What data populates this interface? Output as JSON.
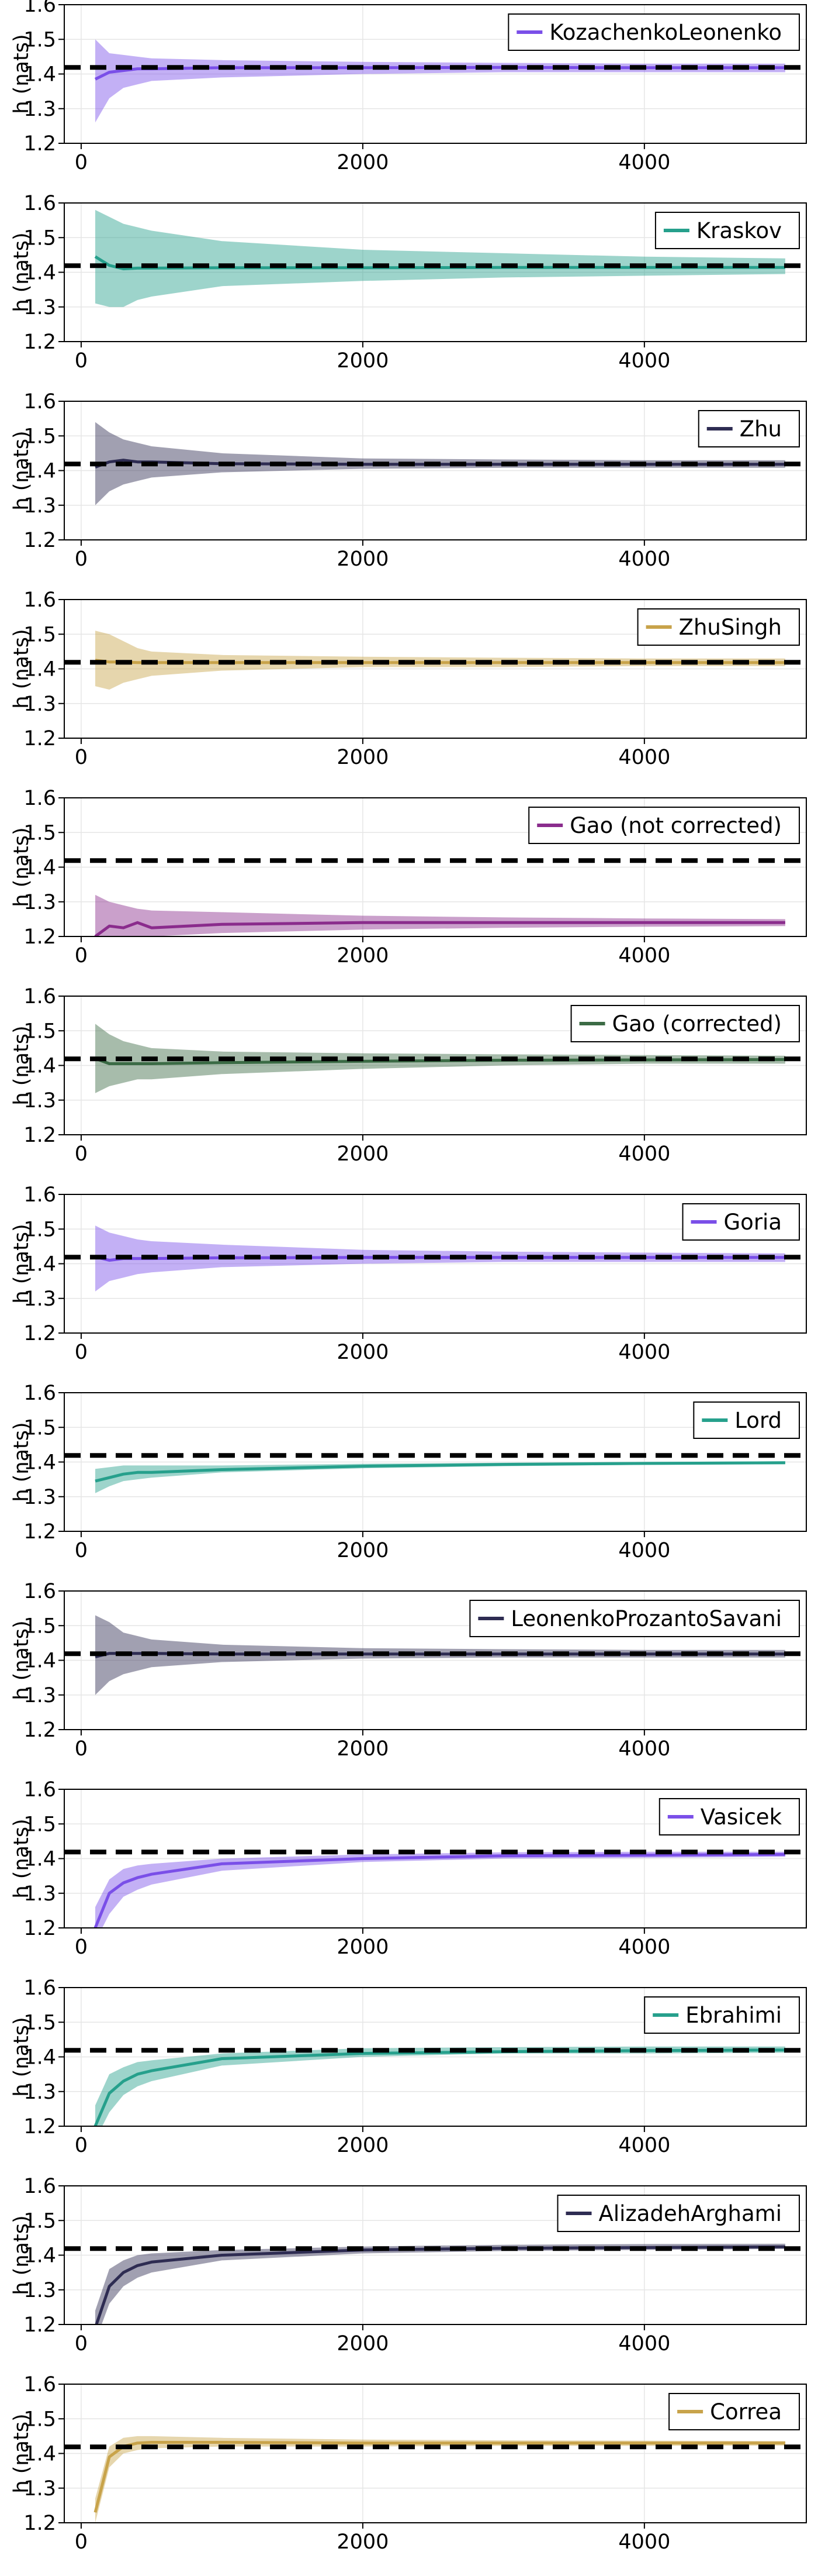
{
  "figure": {
    "xticks": [
      "0",
      "2000",
      "4000"
    ],
    "yticks": [
      "1.2",
      "1.3",
      "1.4",
      "1.5",
      "1.6"
    ],
    "ylabel": "h (nats)",
    "reference_value": 1.4189
  },
  "chart_data": [
    {
      "type": "line",
      "title": "",
      "xlabel": "",
      "ylabel": "h (nats)",
      "xlim": [
        -120,
        5150
      ],
      "ylim": [
        1.2,
        1.6
      ],
      "grid": true,
      "legend_position": "top-right",
      "series": [
        {
          "name": "KozachenkoLeonenko",
          "color": "#7a4fe8",
          "x": [
            100,
            200,
            300,
            400,
            500,
            1000,
            2000,
            3000,
            4000,
            5000
          ],
          "y": [
            1.385,
            1.405,
            1.41,
            1.415,
            1.415,
            1.418,
            1.418,
            1.419,
            1.418,
            1.418
          ],
          "lower": [
            1.26,
            1.33,
            1.36,
            1.37,
            1.38,
            1.39,
            1.4,
            1.405,
            1.405,
            1.405
          ],
          "upper": [
            1.5,
            1.46,
            1.455,
            1.45,
            1.445,
            1.44,
            1.435,
            1.432,
            1.43,
            1.43
          ]
        }
      ]
    },
    {
      "type": "line",
      "title": "",
      "xlabel": "",
      "ylabel": "h (nats)",
      "xlim": [
        -120,
        5150
      ],
      "ylim": [
        1.2,
        1.6
      ],
      "grid": true,
      "legend_position": "top-right",
      "series": [
        {
          "name": "Kraskov",
          "color": "#26a08c",
          "x": [
            100,
            200,
            300,
            400,
            500,
            1000,
            2000,
            3000,
            4000,
            5000
          ],
          "y": [
            1.445,
            1.42,
            1.41,
            1.412,
            1.412,
            1.413,
            1.413,
            1.414,
            1.414,
            1.414
          ],
          "lower": [
            1.31,
            1.3,
            1.3,
            1.32,
            1.33,
            1.36,
            1.375,
            1.385,
            1.39,
            1.395
          ],
          "upper": [
            1.58,
            1.56,
            1.54,
            1.53,
            1.52,
            1.49,
            1.465,
            1.455,
            1.445,
            1.44
          ]
        }
      ]
    },
    {
      "type": "line",
      "title": "",
      "xlabel": "",
      "ylabel": "h (nats)",
      "xlim": [
        -120,
        5150
      ],
      "ylim": [
        1.2,
        1.6
      ],
      "grid": true,
      "legend_position": "top-right",
      "series": [
        {
          "name": "Zhu",
          "color": "#2e2c52",
          "x": [
            100,
            200,
            300,
            400,
            500,
            1000,
            2000,
            3000,
            4000,
            5000
          ],
          "y": [
            1.41,
            1.425,
            1.43,
            1.425,
            1.425,
            1.42,
            1.418,
            1.418,
            1.418,
            1.418
          ],
          "lower": [
            1.3,
            1.34,
            1.36,
            1.37,
            1.38,
            1.395,
            1.405,
            1.408,
            1.408,
            1.408
          ],
          "upper": [
            1.54,
            1.51,
            1.49,
            1.48,
            1.47,
            1.45,
            1.435,
            1.432,
            1.43,
            1.43
          ]
        }
      ]
    },
    {
      "type": "line",
      "title": "",
      "xlabel": "",
      "ylabel": "h (nats)",
      "xlim": [
        -120,
        5150
      ],
      "ylim": [
        1.2,
        1.6
      ],
      "grid": true,
      "legend_position": "top-right",
      "series": [
        {
          "name": "ZhuSingh",
          "color": "#c8a34a",
          "x": [
            100,
            200,
            300,
            400,
            500,
            1000,
            2000,
            3000,
            4000,
            5000
          ],
          "y": [
            1.425,
            1.42,
            1.42,
            1.418,
            1.418,
            1.418,
            1.418,
            1.418,
            1.418,
            1.418
          ],
          "lower": [
            1.35,
            1.34,
            1.36,
            1.37,
            1.38,
            1.395,
            1.405,
            1.405,
            1.408,
            1.408
          ],
          "upper": [
            1.51,
            1.5,
            1.48,
            1.46,
            1.45,
            1.44,
            1.435,
            1.432,
            1.43,
            1.43
          ]
        }
      ]
    },
    {
      "type": "line",
      "title": "",
      "xlabel": "",
      "ylabel": "h (nats)",
      "xlim": [
        -120,
        5150
      ],
      "ylim": [
        1.2,
        1.6
      ],
      "grid": true,
      "legend_position": "top-right",
      "series": [
        {
          "name": "Gao (not corrected)",
          "color": "#8a2c8c",
          "x": [
            100,
            200,
            300,
            400,
            500,
            1000,
            2000,
            3000,
            4000,
            5000
          ],
          "y": [
            1.2,
            1.23,
            1.225,
            1.24,
            1.225,
            1.235,
            1.24,
            1.24,
            1.24,
            1.24
          ],
          "lower": [
            1.16,
            1.18,
            1.19,
            1.2,
            1.2,
            1.21,
            1.22,
            1.225,
            1.228,
            1.23
          ],
          "upper": [
            1.32,
            1.3,
            1.29,
            1.28,
            1.275,
            1.27,
            1.26,
            1.255,
            1.252,
            1.25
          ]
        }
      ]
    },
    {
      "type": "line",
      "title": "",
      "xlabel": "",
      "ylabel": "h (nats)",
      "xlim": [
        -120,
        5150
      ],
      "ylim": [
        1.2,
        1.6
      ],
      "grid": true,
      "legend_position": "top-right",
      "series": [
        {
          "name": "Gao (corrected)",
          "color": "#3b6b45",
          "x": [
            100,
            200,
            300,
            400,
            500,
            1000,
            2000,
            3000,
            4000,
            5000
          ],
          "y": [
            1.42,
            1.405,
            1.405,
            1.405,
            1.405,
            1.408,
            1.412,
            1.415,
            1.416,
            1.417
          ],
          "lower": [
            1.32,
            1.34,
            1.35,
            1.36,
            1.36,
            1.375,
            1.39,
            1.4,
            1.405,
            1.405
          ],
          "upper": [
            1.52,
            1.49,
            1.47,
            1.46,
            1.45,
            1.44,
            1.435,
            1.432,
            1.43,
            1.428
          ]
        }
      ]
    },
    {
      "type": "line",
      "title": "",
      "xlabel": "",
      "ylabel": "h (nats)",
      "xlim": [
        -120,
        5150
      ],
      "ylim": [
        1.2,
        1.6
      ],
      "grid": true,
      "legend_position": "top-right",
      "series": [
        {
          "name": "Goria",
          "color": "#7a4fe8",
          "x": [
            100,
            200,
            300,
            400,
            500,
            1000,
            2000,
            3000,
            4000,
            5000
          ],
          "y": [
            1.42,
            1.41,
            1.415,
            1.415,
            1.415,
            1.417,
            1.418,
            1.418,
            1.418,
            1.418
          ],
          "lower": [
            1.32,
            1.35,
            1.36,
            1.37,
            1.375,
            1.39,
            1.4,
            1.405,
            1.405,
            1.405
          ],
          "upper": [
            1.51,
            1.49,
            1.48,
            1.47,
            1.465,
            1.455,
            1.44,
            1.435,
            1.432,
            1.43
          ]
        }
      ]
    },
    {
      "type": "line",
      "title": "",
      "xlabel": "",
      "ylabel": "h (nats)",
      "xlim": [
        -120,
        5150
      ],
      "ylim": [
        1.2,
        1.6
      ],
      "grid": true,
      "legend_position": "top-right",
      "series": [
        {
          "name": "Lord",
          "color": "#26a08c",
          "x": [
            100,
            200,
            300,
            400,
            500,
            1000,
            2000,
            3000,
            4000,
            5000
          ],
          "y": [
            1.345,
            1.355,
            1.365,
            1.37,
            1.37,
            1.378,
            1.388,
            1.393,
            1.396,
            1.398
          ],
          "lower": [
            1.31,
            1.33,
            1.345,
            1.35,
            1.355,
            1.37,
            1.382,
            1.388,
            1.392,
            1.394
          ],
          "upper": [
            1.38,
            1.385,
            1.39,
            1.39,
            1.39,
            1.39,
            1.395,
            1.398,
            1.4,
            1.402
          ]
        }
      ]
    },
    {
      "type": "line",
      "title": "",
      "xlabel": "",
      "ylabel": "h (nats)",
      "xlim": [
        -120,
        5150
      ],
      "ylim": [
        1.2,
        1.6
      ],
      "grid": true,
      "legend_position": "top-right",
      "series": [
        {
          "name": "LeonenkoProzantoSavani",
          "color": "#2e2c52",
          "x": [
            100,
            200,
            300,
            400,
            500,
            1000,
            2000,
            3000,
            4000,
            5000
          ],
          "y": [
            1.41,
            1.42,
            1.42,
            1.42,
            1.42,
            1.418,
            1.418,
            1.418,
            1.418,
            1.418
          ],
          "lower": [
            1.3,
            1.34,
            1.36,
            1.37,
            1.38,
            1.395,
            1.405,
            1.408,
            1.408,
            1.408
          ],
          "upper": [
            1.53,
            1.51,
            1.48,
            1.47,
            1.46,
            1.445,
            1.435,
            1.432,
            1.43,
            1.43
          ]
        }
      ]
    },
    {
      "type": "line",
      "title": "",
      "xlabel": "",
      "ylabel": "h (nats)",
      "xlim": [
        -120,
        5150
      ],
      "ylim": [
        1.2,
        1.6
      ],
      "grid": true,
      "legend_position": "top-right",
      "series": [
        {
          "name": "Vasicek",
          "color": "#7a4fe8",
          "x": [
            100,
            200,
            300,
            400,
            500,
            1000,
            2000,
            3000,
            4000,
            5000
          ],
          "y": [
            1.2,
            1.3,
            1.33,
            1.345,
            1.355,
            1.385,
            1.4,
            1.408,
            1.41,
            1.412
          ],
          "lower": [
            1.16,
            1.24,
            1.29,
            1.31,
            1.325,
            1.365,
            1.39,
            1.4,
            1.402,
            1.405
          ],
          "upper": [
            1.26,
            1.34,
            1.37,
            1.38,
            1.385,
            1.4,
            1.412,
            1.418,
            1.42,
            1.42
          ]
        }
      ]
    },
    {
      "type": "line",
      "title": "",
      "xlabel": "",
      "ylabel": "h (nats)",
      "xlim": [
        -120,
        5150
      ],
      "ylim": [
        1.2,
        1.6
      ],
      "grid": true,
      "legend_position": "top-right",
      "series": [
        {
          "name": "Ebrahimi",
          "color": "#26a08c",
          "x": [
            100,
            200,
            300,
            400,
            500,
            1000,
            2000,
            3000,
            4000,
            5000
          ],
          "y": [
            1.2,
            1.295,
            1.33,
            1.35,
            1.36,
            1.395,
            1.41,
            1.415,
            1.418,
            1.42
          ],
          "lower": [
            1.16,
            1.24,
            1.29,
            1.315,
            1.33,
            1.375,
            1.4,
            1.41,
            1.41,
            1.412
          ],
          "upper": [
            1.26,
            1.35,
            1.37,
            1.385,
            1.39,
            1.41,
            1.425,
            1.428,
            1.43,
            1.43
          ]
        }
      ]
    },
    {
      "type": "line",
      "title": "",
      "xlabel": "",
      "ylabel": "h (nats)",
      "xlim": [
        -120,
        5150
      ],
      "ylim": [
        1.2,
        1.6
      ],
      "grid": true,
      "legend_position": "top-right",
      "series": [
        {
          "name": "AlizadehArghami",
          "color": "#2e2c52",
          "x": [
            100,
            200,
            300,
            400,
            500,
            1000,
            2000,
            3000,
            4000,
            5000
          ],
          "y": [
            1.19,
            1.31,
            1.35,
            1.37,
            1.38,
            1.4,
            1.415,
            1.42,
            1.422,
            1.424
          ],
          "lower": [
            1.15,
            1.26,
            1.31,
            1.335,
            1.35,
            1.385,
            1.405,
            1.412,
            1.415,
            1.418
          ],
          "upper": [
            1.24,
            1.36,
            1.385,
            1.4,
            1.405,
            1.415,
            1.425,
            1.43,
            1.432,
            1.433
          ]
        }
      ]
    },
    {
      "type": "line",
      "title": "",
      "xlabel": "",
      "ylabel": "h (nats)",
      "xlim": [
        -120,
        5150
      ],
      "ylim": [
        1.2,
        1.6
      ],
      "grid": true,
      "legend_position": "top-right",
      "series": [
        {
          "name": "Correa",
          "color": "#c8a34a",
          "x": [
            100,
            200,
            300,
            400,
            500,
            1000,
            2000,
            3000,
            4000,
            5000
          ],
          "y": [
            1.23,
            1.39,
            1.42,
            1.43,
            1.432,
            1.432,
            1.43,
            1.43,
            1.43,
            1.43
          ],
          "lower": [
            1.2,
            1.36,
            1.4,
            1.41,
            1.415,
            1.42,
            1.42,
            1.422,
            1.422,
            1.423
          ],
          "upper": [
            1.27,
            1.42,
            1.445,
            1.45,
            1.45,
            1.445,
            1.44,
            1.438,
            1.437,
            1.436
          ]
        }
      ]
    }
  ]
}
